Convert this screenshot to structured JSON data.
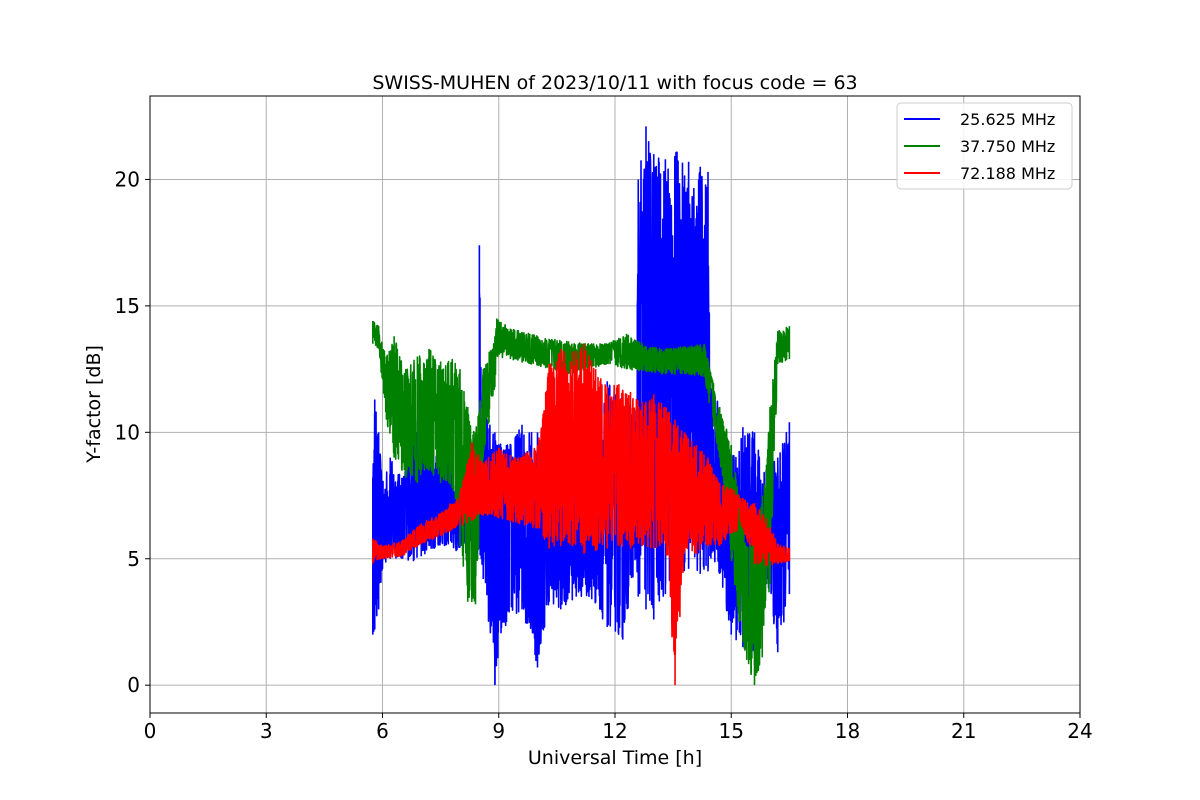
{
  "chart_data": {
    "type": "line",
    "title": "SWISS-MUHEN of 2023/10/11 with focus code = 63",
    "xlabel": "Universal Time [h]",
    "ylabel": "Y-factor [dB]",
    "xlim": [
      0,
      24
    ],
    "ylim": [
      -1.1,
      23.3
    ],
    "x_ticks": [
      "0",
      "3",
      "6",
      "9",
      "12",
      "15",
      "18",
      "21",
      "24"
    ],
    "y_ticks": [
      "0",
      "5",
      "10",
      "15",
      "20"
    ],
    "grid": true,
    "legend_position": "top-right",
    "series": [
      {
        "name": "25.625 MHz",
        "color": "#0000ff",
        "x": [
          5.75,
          5.8,
          5.9,
          6.0,
          6.2,
          6.5,
          6.8,
          7.0,
          7.3,
          7.6,
          7.9,
          8.2,
          8.45,
          8.5,
          8.6,
          8.9,
          9.2,
          9.6,
          10.0,
          10.3,
          10.6,
          11.0,
          11.4,
          11.8,
          12.2,
          12.55,
          12.6,
          12.8,
          13.0,
          13.3,
          13.6,
          13.9,
          14.2,
          14.4,
          14.45,
          14.7,
          15.0,
          15.3,
          15.6,
          15.9,
          16.2,
          16.5
        ],
        "low": [
          2.0,
          2.2,
          3.0,
          4.6,
          5.0,
          5.0,
          4.9,
          5.1,
          5.4,
          5.5,
          5.3,
          5.2,
          5.0,
          5.4,
          4.2,
          0.0,
          2.5,
          3.0,
          0.7,
          3.3,
          3.0,
          3.5,
          3.4,
          2.3,
          1.8,
          5.0,
          3.5,
          3.0,
          2.6,
          3.6,
          4.0,
          4.6,
          4.4,
          4.5,
          5.1,
          4.4,
          2.0,
          1.5,
          1.2,
          4.5,
          1.3,
          3.6
        ],
        "high": [
          8.2,
          11.3,
          10.0,
          8.0,
          9.0,
          8.2,
          9.8,
          12.0,
          9.0,
          10.5,
          8.0,
          9.0,
          9.0,
          17.4,
          11.0,
          10.0,
          9.5,
          10.3,
          10.0,
          9.0,
          8.5,
          10.0,
          9.0,
          12.0,
          11.3,
          11.0,
          20.0,
          22.1,
          21.0,
          20.8,
          21.1,
          20.7,
          20.5,
          20.3,
          12.0,
          11.0,
          9.0,
          10.2,
          10.0,
          8.5,
          9.0,
          10.4
        ]
      },
      {
        "name": "37.750 MHz",
        "color": "#008000",
        "x": [
          5.75,
          5.9,
          6.1,
          6.3,
          6.6,
          6.9,
          7.2,
          7.5,
          7.8,
          8.0,
          8.2,
          8.4,
          8.6,
          8.9,
          8.95,
          9.3,
          9.8,
          10.3,
          10.8,
          11.3,
          11.8,
          12.3,
          12.8,
          13.3,
          13.8,
          14.3,
          14.7,
          15.0,
          15.2,
          15.4,
          15.6,
          15.8,
          16.0,
          16.2,
          16.5
        ],
        "low": [
          13.5,
          13.3,
          10.5,
          9.0,
          8.2,
          8.0,
          8.5,
          8.0,
          7.8,
          5.5,
          3.3,
          3.2,
          9.0,
          11.8,
          13.0,
          12.9,
          12.7,
          12.5,
          12.3,
          12.5,
          12.7,
          12.5,
          12.4,
          12.3,
          12.3,
          12.2,
          9.0,
          5.0,
          2.5,
          1.0,
          0.0,
          1.1,
          4.0,
          12.7,
          12.9
        ],
        "high": [
          14.4,
          14.2,
          13.0,
          13.8,
          12.5,
          13.0,
          13.3,
          12.8,
          12.9,
          12.5,
          11.0,
          10.0,
          12.5,
          13.8,
          14.5,
          14.1,
          13.9,
          13.7,
          13.6,
          13.5,
          13.5,
          13.9,
          13.4,
          13.3,
          13.4,
          13.5,
          11.0,
          9.5,
          7.5,
          5.5,
          6.0,
          7.5,
          11.0,
          14.0,
          14.2
        ]
      },
      {
        "name": "72.188 MHz",
        "color": "#ff0000",
        "x": [
          5.75,
          6.0,
          6.5,
          7.0,
          7.5,
          8.0,
          8.3,
          8.6,
          9.0,
          9.5,
          10.0,
          10.3,
          10.6,
          10.9,
          11.2,
          11.5,
          11.8,
          12.1,
          12.4,
          12.7,
          13.0,
          13.3,
          13.55,
          13.8,
          14.1,
          14.4,
          14.7,
          15.0,
          15.3,
          15.6,
          15.9,
          16.2,
          16.5
        ],
        "low": [
          4.8,
          5.0,
          5.1,
          5.6,
          5.9,
          6.3,
          6.5,
          6.7,
          6.6,
          6.4,
          6.2,
          5.4,
          5.5,
          5.5,
          5.2,
          5.3,
          5.4,
          5.5,
          5.4,
          5.5,
          5.4,
          5.6,
          0.0,
          5.3,
          5.2,
          5.5,
          5.5,
          6.0,
          6.2,
          4.8,
          4.7,
          4.8,
          4.9
        ],
        "high": [
          5.8,
          5.5,
          5.7,
          6.4,
          6.8,
          7.6,
          9.6,
          8.8,
          9.4,
          9.0,
          9.5,
          12.7,
          13.3,
          13.2,
          13.5,
          12.5,
          11.8,
          11.9,
          11.6,
          11.2,
          11.5,
          11.0,
          10.5,
          10.0,
          9.5,
          9.0,
          8.0,
          7.8,
          7.4,
          7.2,
          6.6,
          5.6,
          5.4
        ]
      }
    ]
  }
}
